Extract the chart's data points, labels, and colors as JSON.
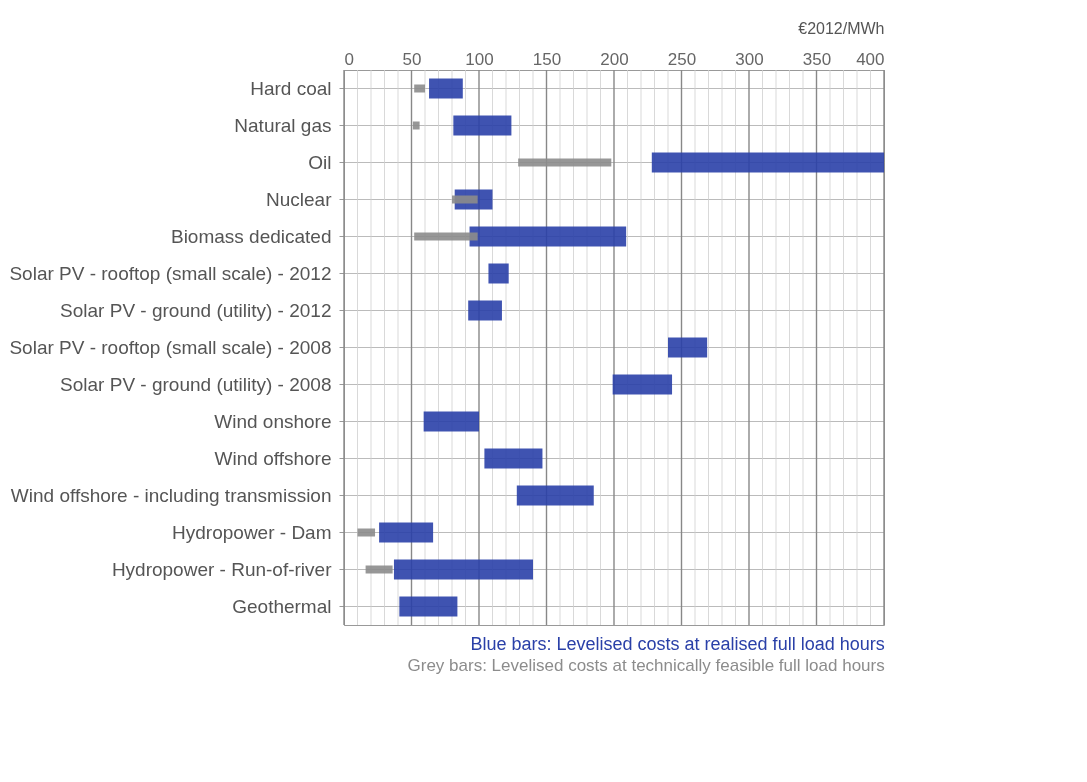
{
  "chart_data": {
    "type": "bar",
    "orientation": "horizontal",
    "xlabel": "€2012/MWh",
    "categories": [
      "Hard coal",
      "Natural gas",
      "Oil",
      "Nuclear",
      "Biomass dedicated",
      "Solar PV - rooftop (small scale) - 2012",
      "Solar PV - ground (utility) - 2012",
      "Solar PV - rooftop (small scale) - 2008",
      "Solar PV - ground (utility) - 2008",
      "Wind onshore",
      "Wind offshore",
      "Wind offshore - including transmission",
      "Hydropower - Dam",
      "Hydropower - Run-of-river",
      "Geothermal"
    ],
    "series": [
      {
        "color": "#2a40a8",
        "base": [
          63,
          81,
          228,
          82,
          93,
          107,
          92,
          240,
          199,
          59,
          104,
          128,
          26,
          37,
          41
        ],
        "values": [
          25,
          43,
          172,
          28,
          116,
          15,
          25,
          29,
          44,
          41,
          43,
          57,
          40,
          103,
          43
        ]
      },
      {
        "color": "#8c8c8c",
        "base": [
          52,
          51,
          129,
          80,
          52,
          null,
          null,
          null,
          null,
          null,
          null,
          null,
          10,
          16,
          null
        ],
        "values": [
          8,
          5,
          69,
          19,
          47,
          null,
          null,
          null,
          null,
          null,
          null,
          null,
          13,
          20,
          null
        ]
      }
    ],
    "xlim": [
      0,
      400
    ],
    "xticks": [
      0,
      {
        "value": 10,
        "label": null
      },
      {
        "value": 20,
        "label": null
      },
      {
        "value": 30,
        "label": null
      },
      {
        "value": 40,
        "label": null
      },
      50,
      {
        "value": 60,
        "label": null
      },
      {
        "value": 70,
        "label": null
      },
      {
        "value": 80,
        "label": null
      },
      {
        "value": 90,
        "label": null
      },
      100,
      {
        "value": 110,
        "label": null
      },
      {
        "value": 120,
        "label": null
      },
      {
        "value": 130,
        "label": null
      },
      {
        "value": 140,
        "label": null
      },
      150,
      {
        "value": 160,
        "label": null
      },
      {
        "value": 170,
        "label": null
      },
      {
        "value": 180,
        "label": null
      },
      {
        "value": 190,
        "label": null
      },
      200,
      {
        "value": 210,
        "label": null
      },
      {
        "value": 220,
        "label": null
      },
      {
        "value": 230,
        "label": null
      },
      {
        "value": 240,
        "label": null
      },
      250,
      {
        "value": 260,
        "label": null
      },
      {
        "value": 270,
        "label": null
      },
      {
        "value": 280,
        "label": null
      },
      {
        "value": 290,
        "label": null
      },
      300,
      {
        "value": 310,
        "label": null
      },
      {
        "value": 320,
        "label": null
      },
      {
        "value": 330,
        "label": null
      },
      {
        "value": 340,
        "label": null
      },
      350,
      {
        "value": 360,
        "label": null
      },
      {
        "value": 370,
        "label": null
      },
      {
        "value": 380,
        "label": null
      },
      {
        "value": 390,
        "label": null
      },
      400
    ],
    "grid": true,
    "annotations": [
      "Blue bars: Levelised costs at realised full load hours",
      "Grey bars: Levelised costs at technically feasible full load hours"
    ]
  }
}
